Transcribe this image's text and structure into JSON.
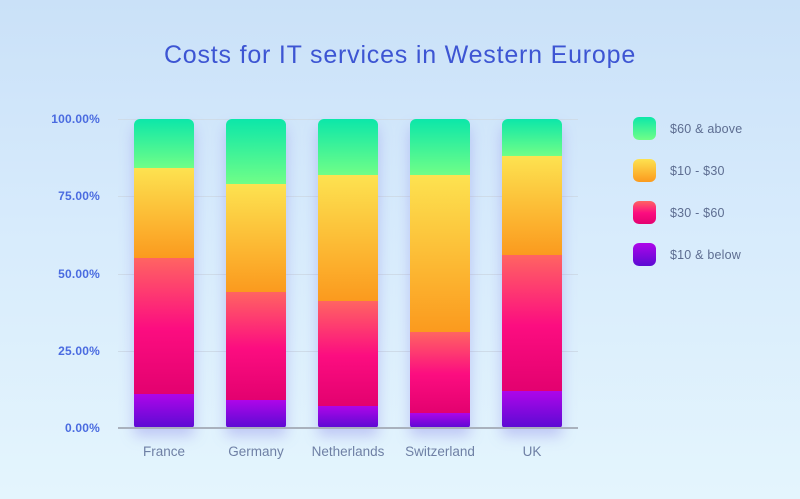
{
  "title": "Costs for IT services in Western Europe",
  "palette": {
    "background_top": "#cae1f8",
    "background_bottom": "#e4f5fd",
    "title_text": "#3d55d3",
    "y_label_text": "#4a6be0",
    "x_label_text": "#6f80a5",
    "legend_text": "#5d6d91",
    "gridline": "#cfdce8",
    "baseline": "#a9b1bd"
  },
  "chart_data": {
    "type": "bar",
    "stacked": true,
    "title": "Costs for IT services in Western Europe",
    "xlabel": "",
    "ylabel": "",
    "ylim": [
      0,
      100
    ],
    "grid": true,
    "legend_position": "right",
    "categories": [
      "France",
      "Germany",
      "Netherlands",
      "Switzerland",
      "UK"
    ],
    "series": [
      {
        "name": "$10 & below",
        "values": [
          11,
          9,
          7,
          5,
          12
        ],
        "gradient": [
          "#ae06e9",
          "#5b0bd3"
        ]
      },
      {
        "name": "$30 - $60",
        "values": [
          44,
          35,
          34,
          26,
          44
        ],
        "gradient": [
          "#ff6462",
          "#fc0d80 52%",
          "#e3016f"
        ]
      },
      {
        "name": "$10 - $30",
        "values": [
          29,
          35,
          41,
          51,
          32
        ],
        "gradient": [
          "#fde250",
          "#fb9a1e"
        ]
      },
      {
        "name": "$60 & above",
        "values": [
          16,
          21,
          18,
          18,
          12
        ],
        "gradient": [
          "#0ce7a9",
          "#70fe87"
        ]
      }
    ],
    "y_ticks": [
      {
        "pct": 100,
        "label": "100.00%"
      },
      {
        "pct": 75,
        "label": "75.00%"
      },
      {
        "pct": 50,
        "label": "50.00%"
      },
      {
        "pct": 25,
        "label": "25.00%"
      },
      {
        "pct": 0,
        "label": "0.00%"
      }
    ],
    "legend_order_top_to_bottom": [
      "$60 & above",
      "$30 - $60",
      "$10 - $30",
      "$10 & below"
    ]
  }
}
